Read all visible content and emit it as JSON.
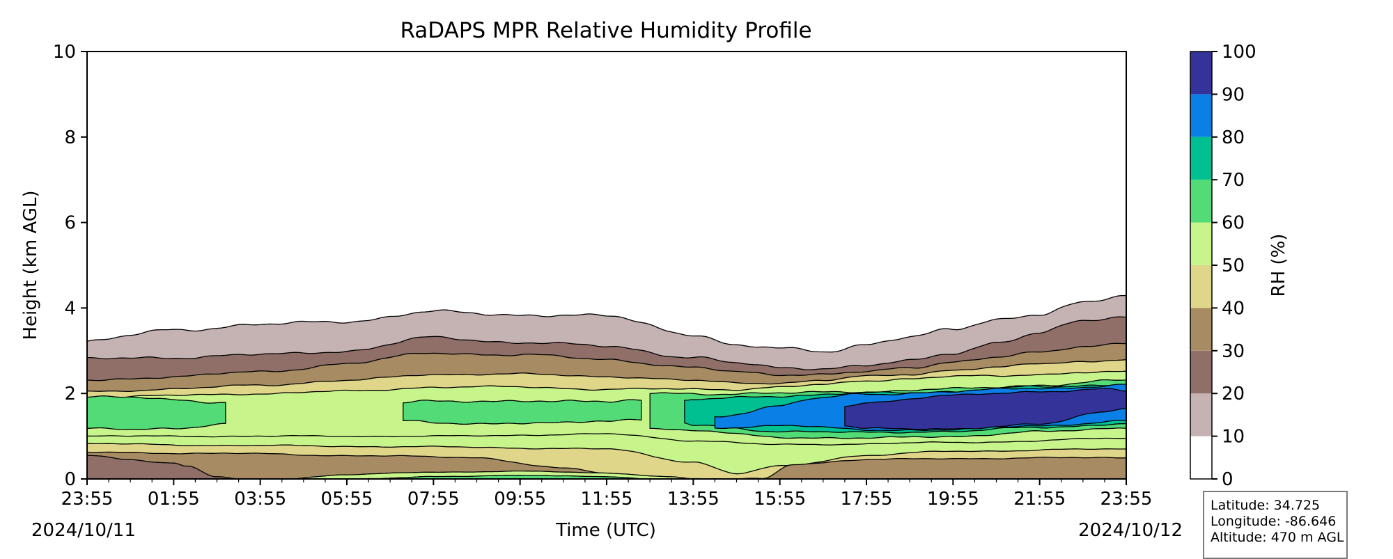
{
  "chart_data": {
    "type": "heatmap",
    "title": "RaDAPS MPR Relative Humidity Profile",
    "xlabel": "Time (UTC)",
    "ylabel": "Height (km AGL)",
    "x_ticks": [
      "23:55",
      "01:55",
      "03:55",
      "05:55",
      "07:55",
      "09:55",
      "11:55",
      "13:55",
      "15:55",
      "17:55",
      "19:55",
      "21:55",
      "23:55"
    ],
    "x_hours": [
      0,
      2,
      4,
      6,
      8,
      10,
      12,
      14,
      16,
      18,
      20,
      22,
      24
    ],
    "date_start": "2024/10/11",
    "date_end": "2024/10/12",
    "y_ticks": [
      "0",
      "2",
      "4",
      "6",
      "8",
      "10"
    ],
    "y_values": [
      0,
      2,
      4,
      6,
      8,
      10
    ],
    "ylim": [
      0,
      10
    ],
    "colorbar": {
      "label": "RH (%)",
      "levels": [
        0,
        10,
        20,
        30,
        40,
        50,
        60,
        70,
        80,
        90,
        100
      ],
      "tick_labels": [
        "0",
        "10",
        "20",
        "30",
        "40",
        "50",
        "60",
        "70",
        "80",
        "90",
        "100"
      ],
      "colors": [
        "#ffffff",
        "#c4b3b2",
        "#8f6f67",
        "#a68b63",
        "#e0d68a",
        "#c8f48c",
        "#52db76",
        "#00c092",
        "#0a80e6",
        "#333399"
      ]
    },
    "contour_boundaries_km": {
      "hours": [
        0,
        2,
        4,
        6,
        8,
        10,
        12,
        14,
        15,
        16,
        17,
        18,
        19,
        20,
        21,
        22,
        23,
        24
      ],
      "rh_10": [
        3.2,
        3.5,
        3.6,
        3.7,
        3.9,
        3.85,
        3.8,
        3.4,
        3.1,
        3.05,
        3.0,
        3.15,
        3.3,
        3.5,
        3.75,
        3.85,
        4.1,
        4.3
      ],
      "rh_20": [
        2.8,
        2.85,
        2.9,
        3.0,
        3.3,
        3.2,
        3.1,
        2.85,
        2.7,
        2.6,
        2.6,
        2.65,
        2.75,
        2.95,
        3.2,
        3.4,
        3.7,
        3.8
      ],
      "rh_30": [
        2.3,
        2.4,
        2.5,
        2.7,
        2.95,
        2.9,
        2.8,
        2.6,
        2.5,
        2.45,
        2.45,
        2.5,
        2.6,
        2.75,
        2.85,
        2.95,
        3.1,
        3.2
      ],
      "rh_40": [
        2.05,
        2.1,
        2.2,
        2.3,
        2.45,
        2.45,
        2.4,
        2.3,
        2.25,
        2.25,
        2.3,
        2.4,
        2.45,
        2.55,
        2.6,
        2.7,
        2.75,
        2.8
      ],
      "rh_50": [
        1.9,
        1.95,
        2.0,
        2.05,
        2.15,
        2.15,
        2.1,
        2.1,
        2.1,
        2.15,
        2.2,
        2.3,
        2.35,
        2.4,
        2.4,
        2.45,
        2.5,
        2.5
      ]
    }
  },
  "info_box": {
    "latitude": "Latitude: 34.725",
    "longitude": "Longitude: -86.646",
    "altitude": "Altitude: 470 m AGL"
  }
}
